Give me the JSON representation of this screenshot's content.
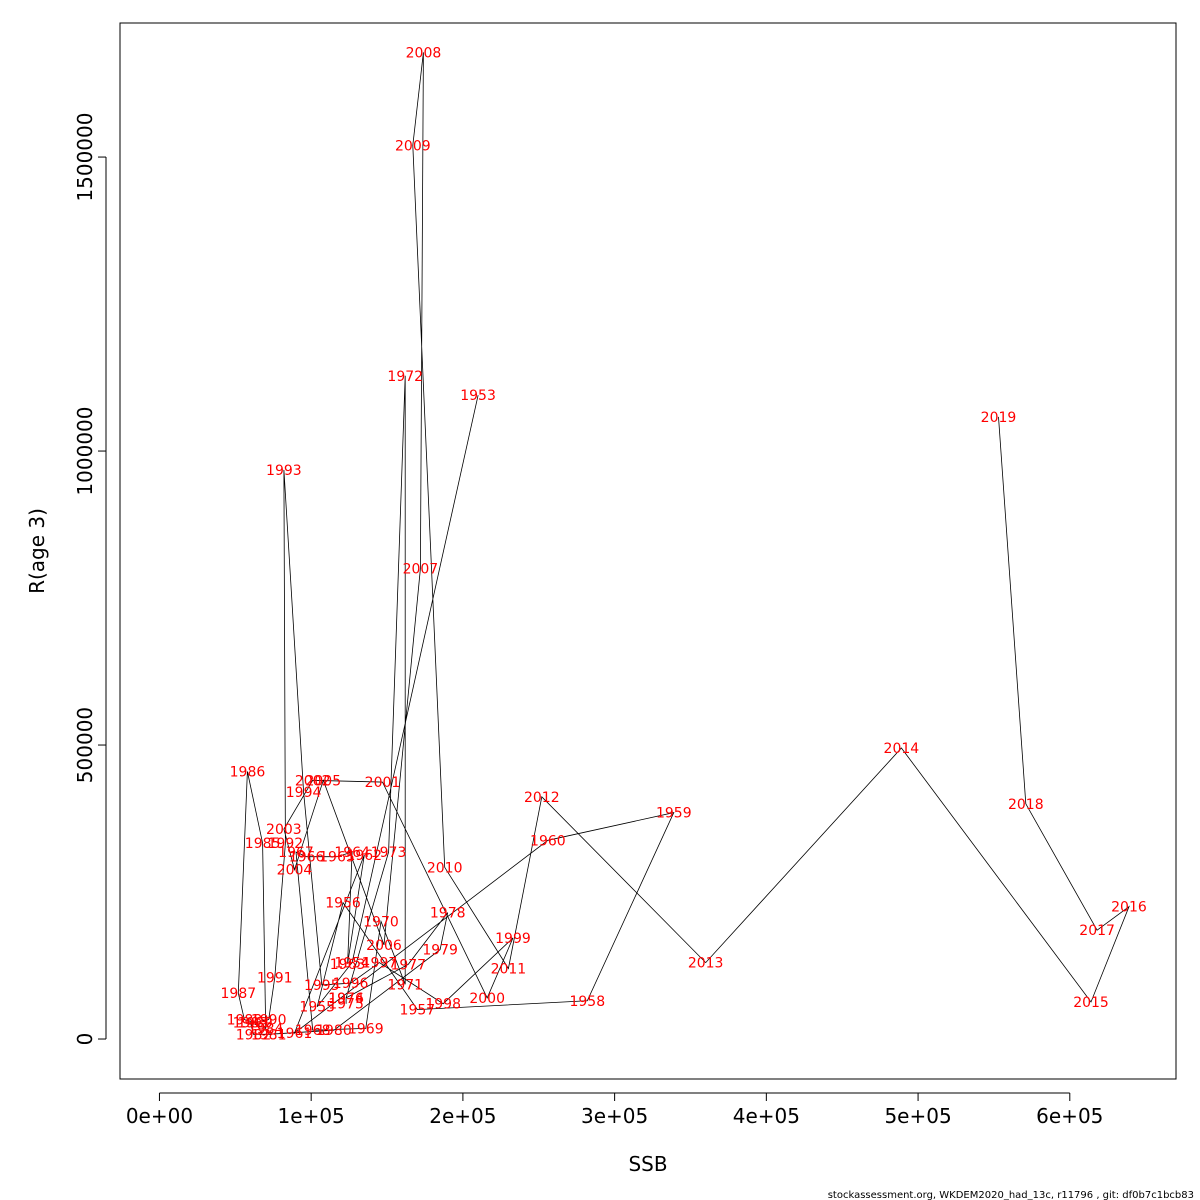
{
  "chart_data": {
    "type": "line",
    "title": "",
    "xlabel": "SSB",
    "ylabel": "R(age 3)",
    "xlim": [
      -26000,
      670000
    ],
    "ylim": [
      -68000,
      1728000
    ],
    "xticks": [
      {
        "value": 0,
        "label": "0e+00"
      },
      {
        "value": 100000,
        "label": "1e+05"
      },
      {
        "value": 200000,
        "label": "2e+05"
      },
      {
        "value": 300000,
        "label": "3e+05"
      },
      {
        "value": 400000,
        "label": "4e+05"
      },
      {
        "value": 500000,
        "label": "5e+05"
      },
      {
        "value": 600000,
        "label": "6e+05"
      }
    ],
    "yticks": [
      {
        "value": 0,
        "label": "0"
      },
      {
        "value": 500000,
        "label": "500000"
      },
      {
        "value": 1000000,
        "label": "1000000"
      },
      {
        "value": 1500000,
        "label": "1500000"
      }
    ],
    "grid": false,
    "line_color": "#000000",
    "label_color": "#ff0000",
    "points": [
      {
        "year": "1953",
        "x": 210000,
        "y": 1095000
      },
      {
        "year": "1954",
        "x": 127000,
        "y": 130000
      },
      {
        "year": "1955",
        "x": 104000,
        "y": 55000
      },
      {
        "year": "1956",
        "x": 121000,
        "y": 232000
      },
      {
        "year": "1957",
        "x": 170000,
        "y": 50000
      },
      {
        "year": "1958",
        "x": 282000,
        "y": 65000
      },
      {
        "year": "1959",
        "x": 339000,
        "y": 385000
      },
      {
        "year": "1960",
        "x": 256000,
        "y": 338000
      },
      {
        "year": "1961",
        "x": 89000,
        "y": 10000
      },
      {
        "year": "1962",
        "x": 135000,
        "y": 313000
      },
      {
        "year": "1963",
        "x": 124000,
        "y": 128000
      },
      {
        "year": "1964",
        "x": 127000,
        "y": 318000
      },
      {
        "year": "1965",
        "x": 117000,
        "y": 310000
      },
      {
        "year": "1966",
        "x": 97000,
        "y": 310000
      },
      {
        "year": "1967",
        "x": 90000,
        "y": 318000
      },
      {
        "year": "1968",
        "x": 101000,
        "y": 15000
      },
      {
        "year": "1969",
        "x": 136000,
        "y": 18000
      },
      {
        "year": "1970",
        "x": 146000,
        "y": 200000
      },
      {
        "year": "1971",
        "x": 162000,
        "y": 93000
      },
      {
        "year": "1972",
        "x": 162000,
        "y": 1128000
      },
      {
        "year": "1973",
        "x": 151000,
        "y": 318000
      },
      {
        "year": "1974",
        "x": 123000,
        "y": 70000
      },
      {
        "year": "1975",
        "x": 123000,
        "y": 60000
      },
      {
        "year": "1976",
        "x": 123000,
        "y": 70000
      },
      {
        "year": "1977",
        "x": 164000,
        "y": 127000
      },
      {
        "year": "1978",
        "x": 190000,
        "y": 215000
      },
      {
        "year": "1979",
        "x": 185000,
        "y": 152000
      },
      {
        "year": "1980",
        "x": 115000,
        "y": 15000
      },
      {
        "year": "1981",
        "x": 72000,
        "y": 8000
      },
      {
        "year": "1982",
        "x": 62000,
        "y": 8000
      },
      {
        "year": "1983",
        "x": 60000,
        "y": 28000
      },
      {
        "year": "1984",
        "x": 70000,
        "y": 18000
      },
      {
        "year": "1985",
        "x": 68000,
        "y": 333000
      },
      {
        "year": "1986",
        "x": 58000,
        "y": 455000
      },
      {
        "year": "1987",
        "x": 52000,
        "y": 78000
      },
      {
        "year": "1988",
        "x": 56000,
        "y": 33000
      },
      {
        "year": "1989",
        "x": 63000,
        "y": 28000
      },
      {
        "year": "1990",
        "x": 72000,
        "y": 33000
      },
      {
        "year": "1991",
        "x": 76000,
        "y": 105000
      },
      {
        "year": "1992",
        "x": 83000,
        "y": 333000
      },
      {
        "year": "1993",
        "x": 82000,
        "y": 968000
      },
      {
        "year": "1994",
        "x": 95000,
        "y": 420000
      },
      {
        "year": "1995",
        "x": 107000,
        "y": 92000
      },
      {
        "year": "1996",
        "x": 126000,
        "y": 95000
      },
      {
        "year": "1997",
        "x": 145000,
        "y": 130000
      },
      {
        "year": "1998",
        "x": 187000,
        "y": 60000
      },
      {
        "year": "1999",
        "x": 233000,
        "y": 172000
      },
      {
        "year": "2000",
        "x": 216000,
        "y": 70000
      },
      {
        "year": "2001",
        "x": 147000,
        "y": 437000
      },
      {
        "year": "2002",
        "x": 101000,
        "y": 440000
      },
      {
        "year": "2003",
        "x": 82000,
        "y": 357000
      },
      {
        "year": "2004",
        "x": 89000,
        "y": 288000
      },
      {
        "year": "2005",
        "x": 108000,
        "y": 440000
      },
      {
        "year": "2006",
        "x": 148000,
        "y": 160000
      },
      {
        "year": "2007",
        "x": 172000,
        "y": 800000
      },
      {
        "year": "2008",
        "x": 174000,
        "y": 1678000
      },
      {
        "year": "2009",
        "x": 167000,
        "y": 1520000
      },
      {
        "year": "2010",
        "x": 188000,
        "y": 292000
      },
      {
        "year": "2011",
        "x": 230000,
        "y": 120000
      },
      {
        "year": "2012",
        "x": 252000,
        "y": 412000
      },
      {
        "year": "2013",
        "x": 360000,
        "y": 130000
      },
      {
        "year": "2014",
        "x": 489000,
        "y": 495000
      },
      {
        "year": "2015",
        "x": 614000,
        "y": 63000
      },
      {
        "year": "2016",
        "x": 639000,
        "y": 225000
      },
      {
        "year": "2017",
        "x": 618000,
        "y": 185000
      },
      {
        "year": "2018",
        "x": 571000,
        "y": 400000
      },
      {
        "year": "2019",
        "x": 553000,
        "y": 1058000
      }
    ]
  },
  "footer": "stockassessment.org, WKDEM2020_had_13c, r11796 , git: df0b7c1bcb83"
}
